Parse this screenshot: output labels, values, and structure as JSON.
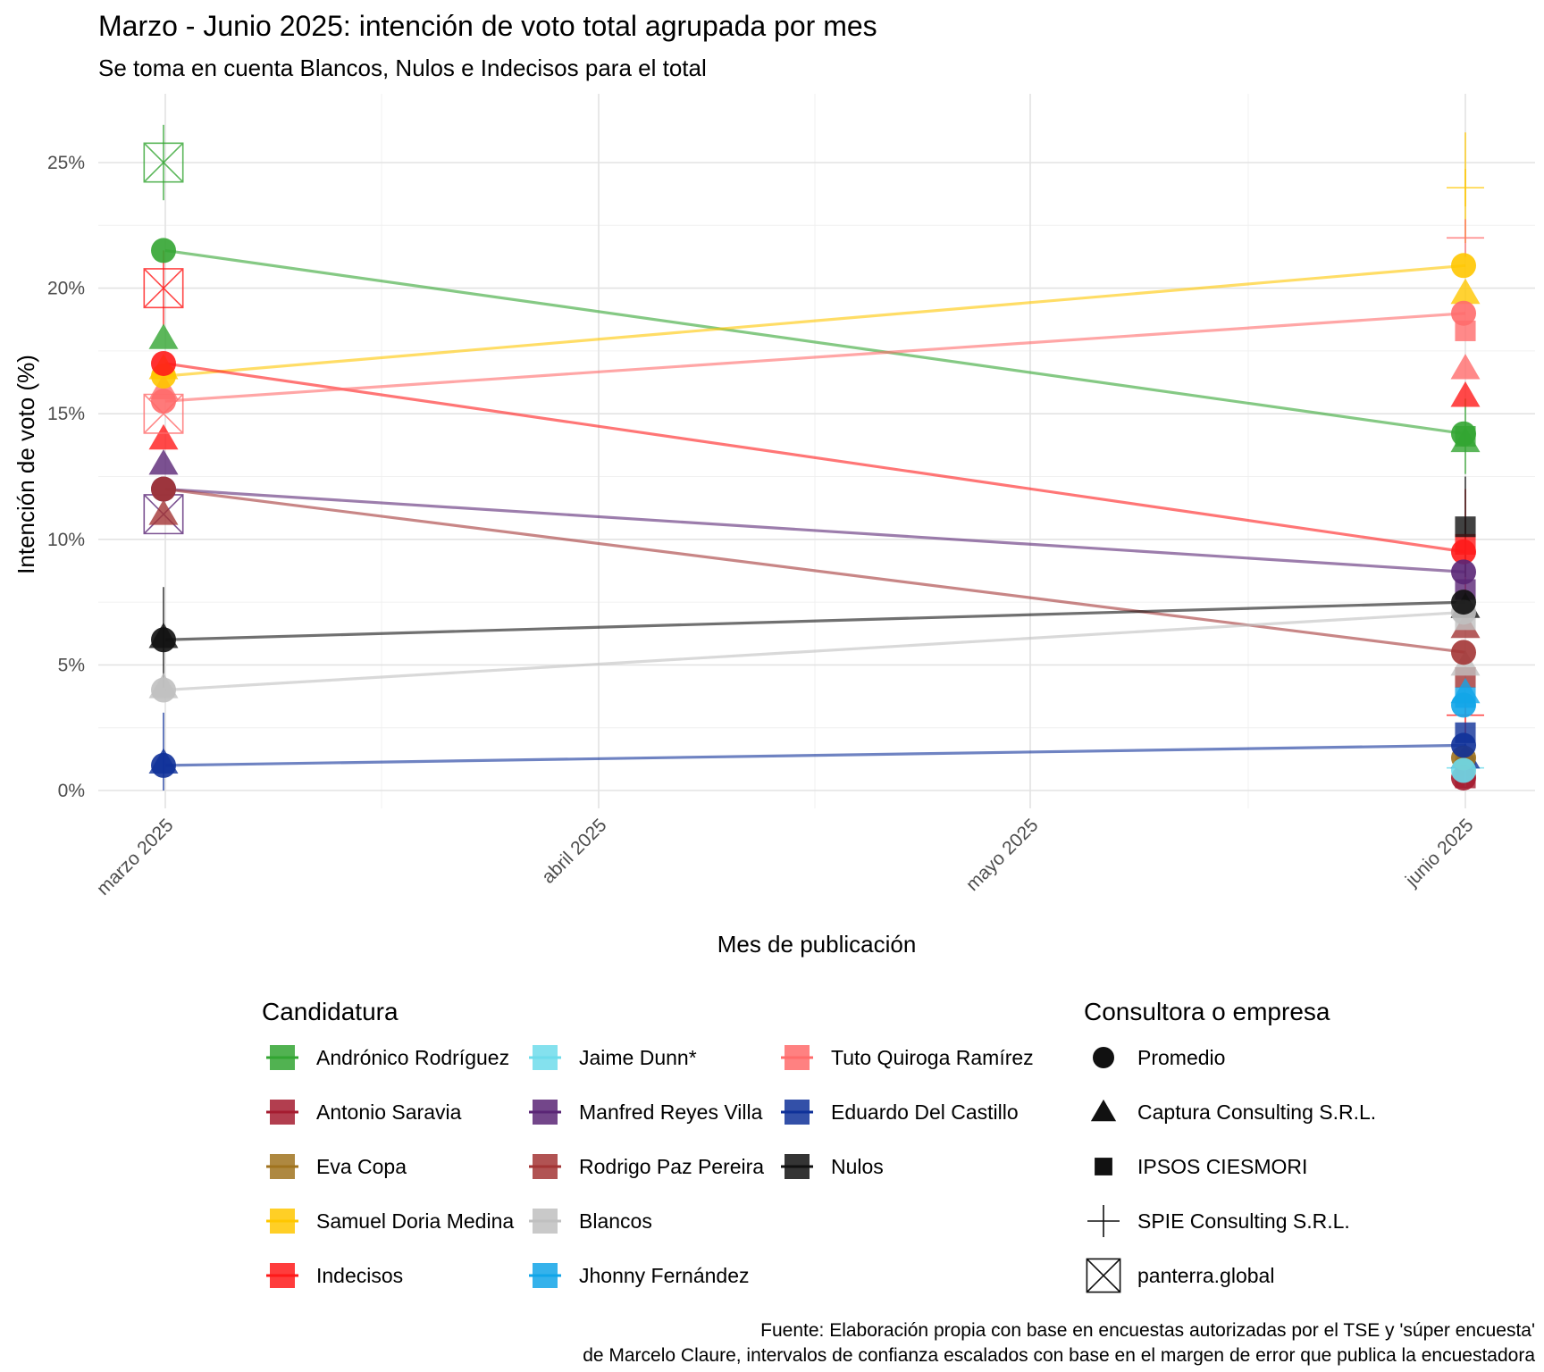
{
  "chart_data": {
    "type": "line",
    "title": "Marzo - Junio 2025: intención de voto total agrupada por mes",
    "subtitle": "Se toma en cuenta Blancos, Nulos e Indecisos para el total",
    "xlabel": "Mes de publicación",
    "ylabel": "Intención de voto (%)",
    "categories": [
      "marzo 2025",
      "abril 2025",
      "mayo 2025",
      "junio 2025"
    ],
    "ylim": [
      0,
      27
    ],
    "yticks": [
      0,
      5,
      10,
      15,
      20,
      25
    ],
    "ytick_labels": [
      "0%",
      "5%",
      "10%",
      "15%",
      "20%",
      "25%"
    ],
    "grid": true,
    "legend_position": "bottom",
    "legend_titles": {
      "color": "Candidatura",
      "shape": "Consultora o empresa"
    },
    "series": [
      {
        "name": "Andrónico Rodríguez",
        "color": "#33A532",
        "values": [
          21.5,
          null,
          null,
          14.2
        ],
        "points": [
          {
            "month": "marzo 2025",
            "pollster": "Captura Consulting S.R.L.",
            "value": 18.0
          },
          {
            "month": "marzo 2025",
            "pollster": "panterra.global",
            "value": 25.0,
            "err": 1.5
          },
          {
            "month": "junio 2025",
            "pollster": "Captura Consulting S.R.L.",
            "value": 13.9
          },
          {
            "month": "junio 2025",
            "pollster": "IPSOS CIESMORI",
            "value": 14.1,
            "err": 1.5
          }
        ]
      },
      {
        "name": "Antonio Saravia",
        "color": "#A51C30",
        "values": [
          null,
          null,
          null,
          0.5
        ],
        "points": [
          {
            "month": "junio 2025",
            "pollster": "IPSOS CIESMORI",
            "value": 0.5
          }
        ]
      },
      {
        "name": "Eva Copa",
        "color": "#A0731F",
        "values": [
          null,
          null,
          null,
          1.3
        ],
        "points": [
          {
            "month": "junio 2025",
            "pollster": "IPSOS CIESMORI",
            "value": 1.0
          }
        ]
      },
      {
        "name": "Samuel Doria Medina",
        "color": "#FFC700",
        "values": [
          16.5,
          null,
          null,
          20.9
        ],
        "points": [
          {
            "month": "marzo 2025",
            "pollster": "Captura Consulting S.R.L.",
            "value": 16.8
          },
          {
            "month": "junio 2025",
            "pollster": "Captura Consulting S.R.L.",
            "value": 19.8
          },
          {
            "month": "junio 2025",
            "pollster": "SPIE Consulting S.R.L.",
            "value": 24.0,
            "err": 2.2
          }
        ]
      },
      {
        "name": "Indecisos",
        "color": "#FF1A1A",
        "values": [
          17.0,
          null,
          null,
          9.5
        ],
        "points": [
          {
            "month": "marzo 2025",
            "pollster": "Captura Consulting S.R.L.",
            "value": 14.0
          },
          {
            "month": "marzo 2025",
            "pollster": "panterra.global",
            "value": 20.0,
            "err": 1.5
          },
          {
            "month": "junio 2025",
            "pollster": "Captura Consulting S.R.L.",
            "value": 15.7
          },
          {
            "month": "junio 2025",
            "pollster": "IPSOS CIESMORI",
            "value": 9.8,
            "err": 2.2
          },
          {
            "month": "junio 2025",
            "pollster": "SPIE Consulting S.R.L.",
            "value": 3.0
          }
        ]
      },
      {
        "name": "Jaime Dunn*",
        "color": "#6EDCEB",
        "values": [
          null,
          null,
          null,
          0.8
        ],
        "points": [
          {
            "month": "junio 2025",
            "pollster": "SPIE Consulting S.R.L.",
            "value": 0.9
          }
        ]
      },
      {
        "name": "Manfred Reyes Villa",
        "color": "#5A2675",
        "values": [
          12.0,
          null,
          null,
          8.7
        ],
        "points": [
          {
            "month": "marzo 2025",
            "pollster": "Captura Consulting S.R.L.",
            "value": 13.0
          },
          {
            "month": "marzo 2025",
            "pollster": "panterra.global",
            "value": 11.0
          },
          {
            "month": "junio 2025",
            "pollster": "IPSOS CIESMORI",
            "value": 8.0
          }
        ]
      },
      {
        "name": "Rodrigo Paz Pereira",
        "color": "#A33535",
        "values": [
          12.0,
          null,
          null,
          5.5
        ],
        "points": [
          {
            "month": "marzo 2025",
            "pollster": "Captura Consulting S.R.L.",
            "value": 11.0
          },
          {
            "month": "junio 2025",
            "pollster": "Captura Consulting S.R.L.",
            "value": 6.5
          },
          {
            "month": "junio 2025",
            "pollster": "IPSOS CIESMORI",
            "value": 4.5
          }
        ]
      },
      {
        "name": "Blancos",
        "color": "#C0C0C0",
        "values": [
          4.0,
          null,
          null,
          7.1
        ],
        "points": [
          {
            "month": "marzo 2025",
            "pollster": "Captura Consulting S.R.L.",
            "value": 4.1
          },
          {
            "month": "junio 2025",
            "pollster": "Captura Consulting S.R.L.",
            "value": 5.0
          },
          {
            "month": "junio 2025",
            "pollster": "IPSOS CIESMORI",
            "value": 6.8
          }
        ]
      },
      {
        "name": "Jhonny Fernández",
        "color": "#12A5E8",
        "values": [
          null,
          null,
          null,
          3.4
        ],
        "points": [
          {
            "month": "junio 2025",
            "pollster": "Captura Consulting S.R.L.",
            "value": 3.9
          },
          {
            "month": "junio 2025",
            "pollster": "IPSOS CIESMORI",
            "value": 3.7
          }
        ]
      },
      {
        "name": "Tuto Quiroga Ramírez",
        "color": "#FF6B6B",
        "values": [
          15.5,
          null,
          null,
          19.0
        ],
        "points": [
          {
            "month": "marzo 2025",
            "pollster": "Captura Consulting S.R.L.",
            "value": 16.0
          },
          {
            "month": "marzo 2025",
            "pollster": "panterra.global",
            "value": 15.0
          },
          {
            "month": "junio 2025",
            "pollster": "Captura Consulting S.R.L.",
            "value": 16.8
          },
          {
            "month": "junio 2025",
            "pollster": "IPSOS CIESMORI",
            "value": 18.3
          },
          {
            "month": "junio 2025",
            "pollster": "SPIE Consulting S.R.L.",
            "value": 22.0
          }
        ]
      },
      {
        "name": "Eduardo Del Castillo",
        "color": "#0F3199",
        "values": [
          1.0,
          null,
          null,
          1.8
        ],
        "points": [
          {
            "month": "marzo 2025",
            "pollster": "Captura Consulting S.R.L.",
            "value": 1.1,
            "err": 2.0
          },
          {
            "month": "junio 2025",
            "pollster": "Captura Consulting S.R.L.",
            "value": 1.3
          },
          {
            "month": "junio 2025",
            "pollster": "IPSOS CIESMORI",
            "value": 2.3
          }
        ]
      },
      {
        "name": "Nulos",
        "color": "#111111",
        "values": [
          6.0,
          null,
          null,
          7.5
        ],
        "points": [
          {
            "month": "marzo 2025",
            "pollster": "Captura Consulting S.R.L.",
            "value": 6.1,
            "err": 2.0
          },
          {
            "month": "junio 2025",
            "pollster": "Captura Consulting S.R.L.",
            "value": 7.3
          },
          {
            "month": "junio 2025",
            "pollster": "IPSOS CIESMORI",
            "value": 10.5,
            "err": 2.0
          }
        ]
      }
    ],
    "pollsters": [
      {
        "name": "Promedio",
        "shape": "circle"
      },
      {
        "name": "Captura Consulting S.R.L.",
        "shape": "triangle"
      },
      {
        "name": "IPSOS CIESMORI",
        "shape": "square"
      },
      {
        "name": "SPIE Consulting S.R.L.",
        "shape": "plus"
      },
      {
        "name": "panterra.global",
        "shape": "boxx"
      }
    ],
    "caption": [
      "Fuente: Elaboración propia con base en encuestas autorizadas por el TSE y 'súper encuesta'",
      "de Marcelo Claure, intervalos de confianza escalados con base en el margen de error que publica la encuestadora"
    ]
  }
}
